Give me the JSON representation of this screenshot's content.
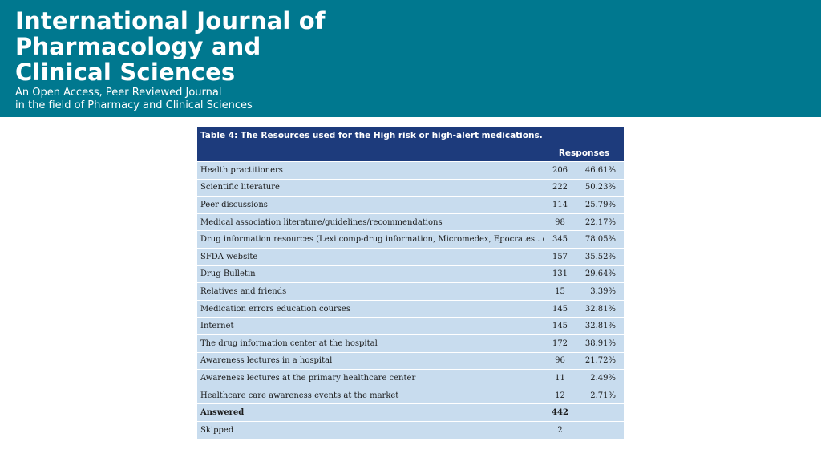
{
  "journal": {
    "title_lines": [
      "International Journal of",
      "Pharmacology and",
      "Clinical Sciences"
    ],
    "subtitle_lines": [
      "An Open Access, Peer Reviewed Journal",
      "in the field of Pharmacy and Clinical Sciences"
    ]
  },
  "table": {
    "caption": "Table 4: The Resources used for the High risk or high-alert medications.",
    "responses_header": "Responses",
    "rows": [
      {
        "label": "Health practitioners",
        "count": "206",
        "percent": "46.61%"
      },
      {
        "label": "Scientific literature",
        "count": "222",
        "percent": "50.23%"
      },
      {
        "label": "Peer discussions",
        "count": "114",
        "percent": "25.79%"
      },
      {
        "label": "Medical association literature/guidelines/recommendations",
        "count": "98",
        "percent": "22.17%"
      },
      {
        "label": "Drug information resources (Lexi comp-drug information, Micromedex, Epocrates.. etc",
        "count": "345",
        "percent": "78.05%"
      },
      {
        "label": "SFDA website",
        "count": "157",
        "percent": "35.52%"
      },
      {
        "label": "Drug Bulletin",
        "count": "131",
        "percent": "29.64%"
      },
      {
        "label": "Relatives and friends",
        "count": "15",
        "percent": "3.39%"
      },
      {
        "label": "Medication errors education courses",
        "count": "145",
        "percent": "32.81%"
      },
      {
        "label": "Internet",
        "count": "145",
        "percent": "32.81%"
      },
      {
        "label": "The drug information center at the hospital",
        "count": "172",
        "percent": "38.91%"
      },
      {
        "label": "Awareness lectures in a hospital",
        "count": "96",
        "percent": "21.72%"
      },
      {
        "label": "Awareness lectures at the primary healthcare center",
        "count": "11",
        "percent": "2.49%"
      },
      {
        "label": "Healthcare care awareness events at the market",
        "count": "12",
        "percent": "2.71%"
      }
    ],
    "answered": {
      "label": "Answered",
      "count": "442",
      "percent": ""
    },
    "skipped": {
      "label": "Skipped",
      "count": "2",
      "percent": ""
    }
  }
}
